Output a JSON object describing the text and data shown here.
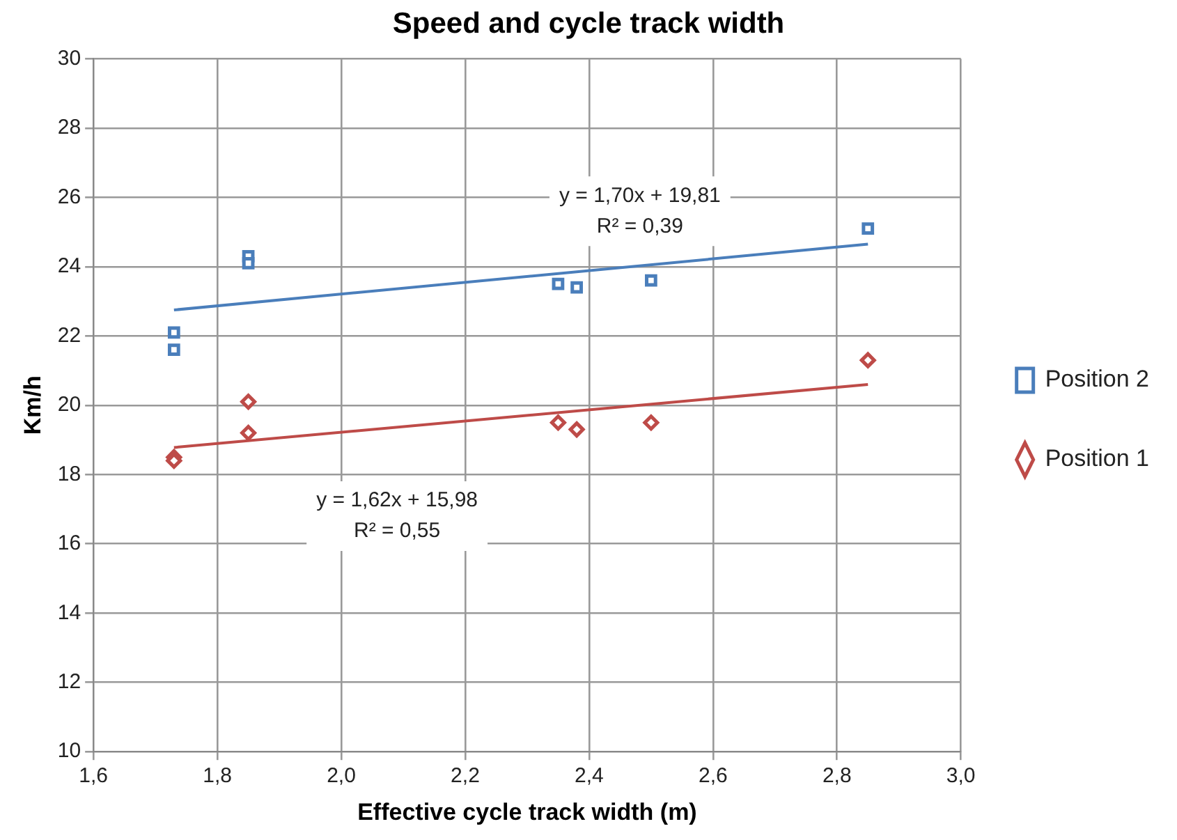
{
  "chart_data": {
    "type": "scatter",
    "title": "Speed and cycle track width",
    "xlabel": "Effective cycle track width (m)",
    "ylabel": "Km/h",
    "xlim": [
      1.6,
      3.0
    ],
    "xticks": [
      {
        "value": 1.6,
        "label": "1,6"
      },
      {
        "value": 1.8,
        "label": "1,8"
      },
      {
        "value": 2.0,
        "label": "2,0"
      },
      {
        "value": 2.2,
        "label": "2,2"
      },
      {
        "value": 2.4,
        "label": "2,4"
      },
      {
        "value": 2.6,
        "label": "2,6"
      },
      {
        "value": 2.8,
        "label": "2,8"
      },
      {
        "value": 3.0,
        "label": "3,0"
      }
    ],
    "ylim": [
      10,
      30
    ],
    "yticks": [
      10,
      12,
      14,
      16,
      18,
      20,
      22,
      24,
      26,
      28,
      30
    ],
    "grid": true,
    "legend": "right",
    "series": [
      {
        "name": "Position 2",
        "type": "scatter",
        "marker": "square",
        "color": "#4a7ebb",
        "x": [
          1.73,
          1.73,
          1.85,
          1.85,
          2.35,
          2.38,
          2.5,
          2.85
        ],
        "values": [
          22.1,
          21.6,
          24.3,
          24.1,
          23.5,
          23.4,
          23.6,
          25.1
        ]
      },
      {
        "name": "Position 1",
        "type": "scatter",
        "marker": "diamond",
        "color": "#be4b48",
        "x": [
          1.73,
          1.73,
          1.85,
          1.85,
          2.35,
          2.38,
          2.5,
          2.85
        ],
        "values": [
          18.5,
          18.4,
          20.1,
          19.2,
          19.5,
          19.3,
          19.5,
          21.3
        ]
      },
      {
        "type": "line",
        "marker": "none",
        "color": "#4a7ebb",
        "x": [
          1.73,
          2.85
        ],
        "values": [
          22.75,
          24.65
        ]
      },
      {
        "type": "line",
        "marker": "none",
        "color": "#be4b48",
        "x": [
          1.73,
          2.85
        ],
        "values": [
          18.78,
          20.6
        ]
      }
    ],
    "annotations": [
      "y = 1,70x + 19,81\nR² = 0,39",
      "y = 1,62x + 15,98\nR² = 0,55"
    ]
  }
}
